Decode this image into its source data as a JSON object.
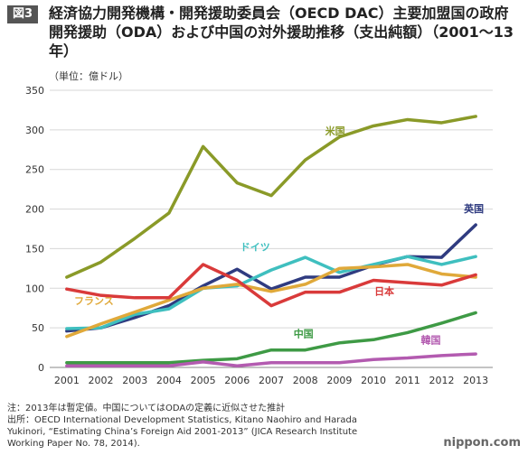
{
  "figure": {
    "tag": "図3",
    "title": "経済協力開発機構・開発援助委員会（OECD DAC）主要加盟国の政府開発援助（ODA）および中国の対外援助推移（支出純額）（2001〜13年）",
    "unit": "（単位：億ドル）"
  },
  "notes": {
    "note": "注：2013年は暫定値。中国についてはODAの定義に近似させた推計",
    "source1": "出所：OECD International Development Statistics, Kitano Naohiro and Harada",
    "source2": "Yukinori, “Estimating China’s Foreign Aid 2001-2013” (JICA Research Institute",
    "source3": "Working Paper No. 78, 2014)."
  },
  "brand": "nippon.com",
  "chart_data": {
    "type": "line",
    "title": "",
    "xlabel": "",
    "ylabel": "",
    "x": [
      "2001",
      "2002",
      "2003",
      "2004",
      "2005",
      "2006",
      "2007",
      "2008",
      "2009",
      "2010",
      "2011",
      "2012",
      "2013"
    ],
    "ylim": [
      0,
      350
    ],
    "yticks": [
      0,
      50,
      100,
      150,
      200,
      250,
      300,
      350
    ],
    "grid": "horizontal",
    "series": [
      {
        "name": "米国",
        "color": "#8a9a28",
        "values": [
          114,
          133,
          163,
          195,
          279,
          233,
          217,
          262,
          291,
          305,
          313,
          309,
          317
        ]
      },
      {
        "name": "英国",
        "color": "#2f3b80",
        "values": [
          46,
          50,
          63,
          78,
          103,
          124,
          99,
          114,
          114,
          129,
          140,
          139,
          180
        ]
      },
      {
        "name": "ドイツ",
        "color": "#3fbfbf",
        "values": [
          49,
          50,
          67,
          74,
          100,
          103,
          123,
          139,
          120,
          130,
          140,
          130,
          140
        ]
      },
      {
        "name": "フランス",
        "color": "#e0a93a",
        "values": [
          39,
          55,
          70,
          85,
          100,
          105,
          96,
          105,
          125,
          127,
          130,
          118,
          114
        ]
      },
      {
        "name": "日本",
        "color": "#d93a3a",
        "values": [
          99,
          91,
          88,
          88,
          130,
          110,
          78,
          95,
          95,
          110,
          107,
          104,
          117
        ]
      },
      {
        "name": "中国",
        "color": "#3e9a45",
        "values": [
          6,
          6,
          6,
          6,
          9,
          11,
          22,
          22,
          31,
          35,
          44,
          56,
          69
        ]
      },
      {
        "name": "韓国",
        "color": "#b35bb0",
        "values": [
          2,
          2,
          2,
          2,
          7,
          2,
          6,
          6,
          6,
          10,
          12,
          15,
          17
        ]
      }
    ]
  }
}
